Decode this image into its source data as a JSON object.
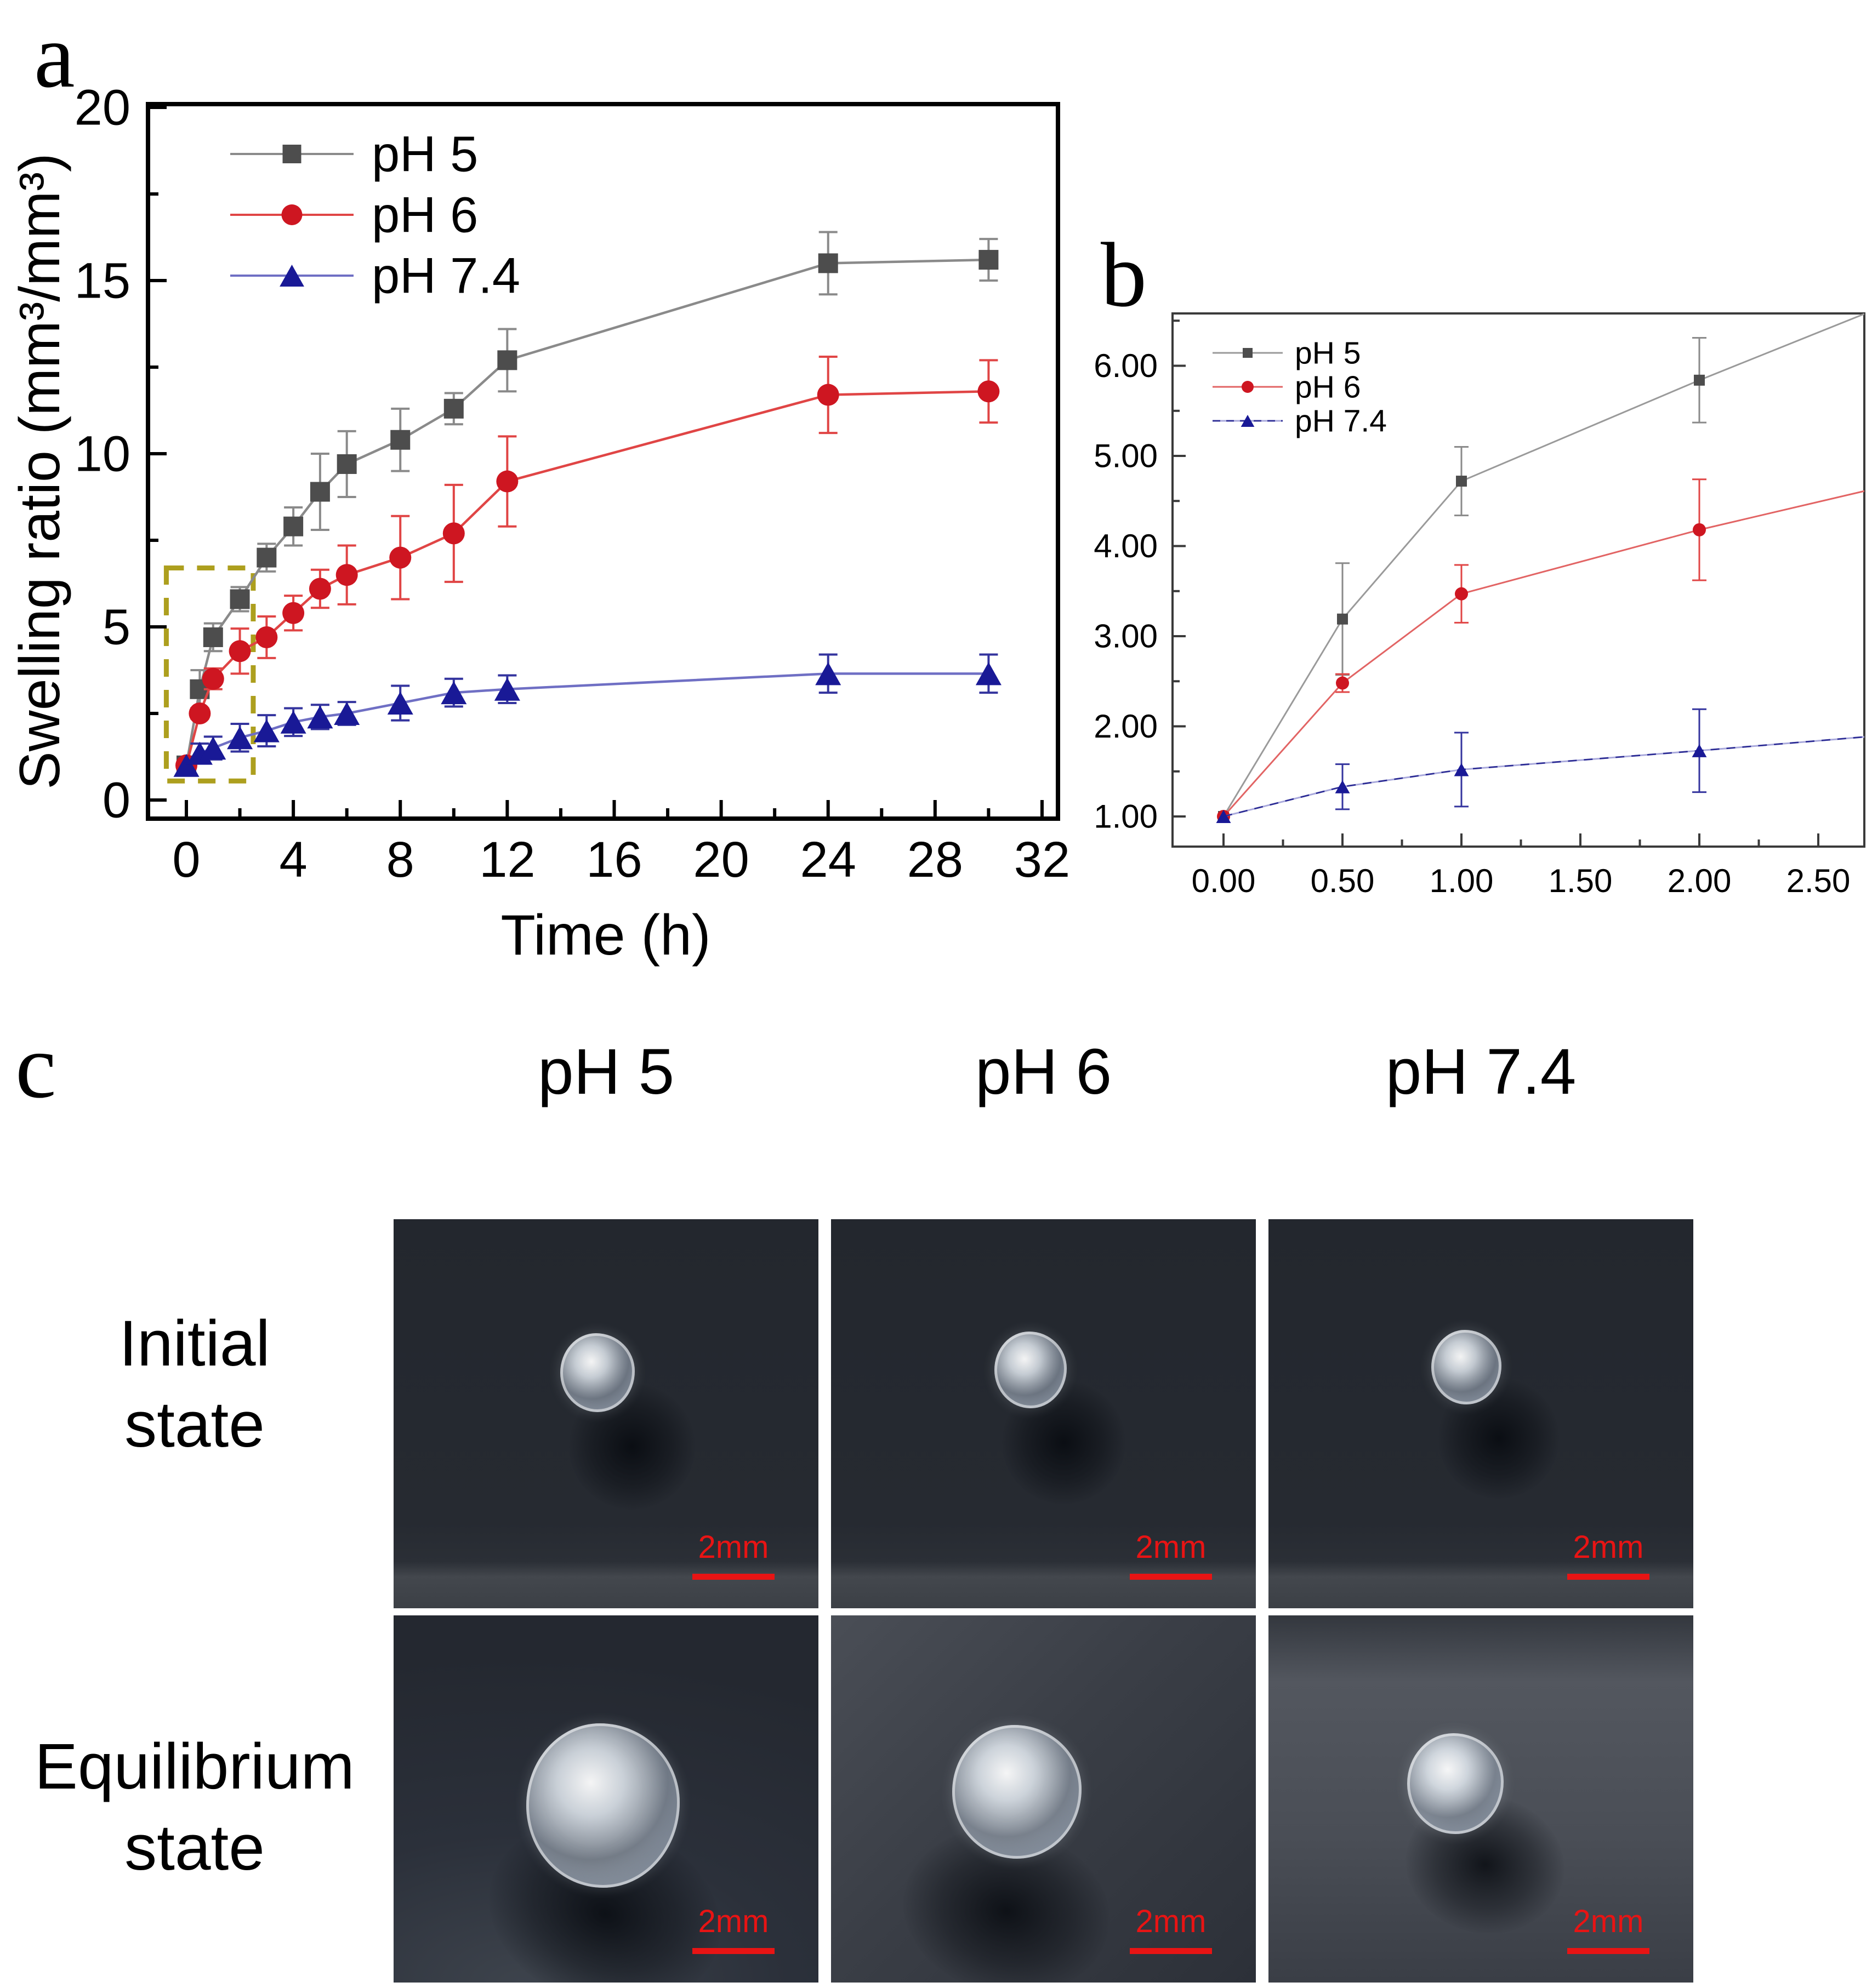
{
  "figure": {
    "panel_a_label": "a",
    "panel_b_label": "b",
    "panel_c_label": "c",
    "accent_colors": {
      "ph5_marker": "#4d4d4d",
      "ph5_line": "#8a8a8a",
      "ph6_marker": "#ce1621",
      "ph6_line": "#e04545",
      "ph74_marker": "#191996",
      "ph74_line": "#6f6fc4",
      "inset_box": "#ad9f1e",
      "scale_bar": "#e81414"
    }
  },
  "chart_data": [
    {
      "id": "panel_a",
      "type": "line",
      "title": "",
      "xlabel": "Time (h)",
      "ylabel": "Swelling ratio (mm³/mm³)",
      "xlim": [
        -1.4,
        32.6
      ],
      "ylim": [
        -0.55,
        20.1
      ],
      "grid": false,
      "legend_position": "top-left",
      "x_ticks": [
        0,
        4,
        8,
        12,
        16,
        20,
        24,
        28,
        32
      ],
      "x_tick_labels": [
        "0",
        "4",
        "8",
        "12",
        "16",
        "20",
        "24",
        "28",
        "32"
      ],
      "x_minor_ticks": [
        2,
        6,
        10,
        14,
        18,
        22,
        26,
        30
      ],
      "y_ticks": [
        0,
        5,
        10,
        15,
        20
      ],
      "y_tick_labels": [
        "0",
        "5",
        "10",
        "15",
        "20"
      ],
      "y_minor_ticks": [
        2.5,
        7.5,
        12.5,
        17.5
      ],
      "series": [
        {
          "name": "pH 5",
          "marker": "square",
          "line_style": "solid",
          "line_color": "#8a8a8a",
          "marker_color": "#4d4d4d",
          "err_color": "#8a8a8a",
          "x": [
            0,
            0.5,
            1,
            2,
            3,
            4,
            5,
            6,
            8,
            10,
            12,
            24,
            30
          ],
          "y": [
            1.0,
            3.2,
            4.7,
            5.8,
            7.0,
            7.9,
            8.9,
            9.7,
            10.4,
            11.3,
            12.7,
            15.5,
            15.6
          ],
          "yerr": [
            0,
            0.55,
            0.4,
            0.35,
            0.4,
            0.55,
            1.1,
            0.95,
            0.9,
            0.45,
            0.9,
            0.9,
            0.6
          ]
        },
        {
          "name": "pH 6",
          "marker": "circle",
          "line_style": "solid",
          "line_color": "#e04545",
          "marker_color": "#ce1621",
          "err_color": "#e04545",
          "x": [
            0,
            0.5,
            1,
            2,
            3,
            4,
            5,
            6,
            8,
            10,
            12,
            24,
            30
          ],
          "y": [
            1.0,
            2.5,
            3.5,
            4.3,
            4.7,
            5.4,
            6.1,
            6.5,
            7.0,
            7.7,
            9.2,
            11.7,
            11.8
          ],
          "yerr": [
            0,
            0.15,
            0.3,
            0.65,
            0.6,
            0.5,
            0.55,
            0.85,
            1.2,
            1.4,
            1.3,
            1.1,
            0.9
          ]
        },
        {
          "name": "pH 7.4",
          "marker": "triangle",
          "line_style": "solid",
          "line_color": "#6f6fc4",
          "marker_color": "#191996",
          "err_color": "#34349e",
          "x": [
            0,
            0.5,
            1,
            2,
            3,
            4,
            5,
            6,
            8,
            10,
            12,
            24,
            30
          ],
          "y": [
            1.0,
            1.35,
            1.5,
            1.8,
            2.0,
            2.25,
            2.4,
            2.5,
            2.8,
            3.1,
            3.2,
            3.65,
            3.65
          ],
          "yerr": [
            0,
            0.28,
            0.33,
            0.4,
            0.45,
            0.4,
            0.35,
            0.33,
            0.5,
            0.4,
            0.4,
            0.55,
            0.55
          ]
        }
      ],
      "inset_box": {
        "x0": -0.75,
        "x1": 2.5,
        "y0": 0.55,
        "y1": 6.7,
        "color": "#ad9f1e"
      }
    },
    {
      "id": "panel_b",
      "type": "line",
      "title": "",
      "xlabel": "",
      "ylabel": "",
      "xlim": [
        -0.21,
        2.69
      ],
      "ylim": [
        0.67,
        6.58
      ],
      "grid": false,
      "legend_position": "top-left",
      "x_ticks": [
        0.0,
        0.5,
        1.0,
        1.5,
        2.0,
        2.5
      ],
      "x_tick_labels": [
        "0.00",
        "0.50",
        "1.00",
        "1.50",
        "2.00",
        "2.50"
      ],
      "x_minor_ticks": [
        0.25,
        0.75,
        1.25,
        1.75,
        2.25,
        2.75
      ],
      "y_ticks": [
        1,
        2,
        3,
        4,
        5,
        6
      ],
      "y_tick_labels": [
        "1.00",
        "2.00",
        "3.00",
        "4.00",
        "5.00",
        "6.00"
      ],
      "y_minor_ticks": [
        1.5,
        2.5,
        3.5,
        4.5,
        5.5,
        6.5
      ],
      "series": [
        {
          "name": "pH 5",
          "marker": "square",
          "line_style": "solid",
          "n_markers": 4,
          "line_color": "#9a9a9a",
          "marker_color": "#4d4d4d",
          "err_color": "#8a8a8a",
          "x": [
            0,
            0.5,
            1,
            2,
            3
          ],
          "y": [
            1.0,
            3.19,
            4.72,
            5.84,
            6.9
          ],
          "yerr": [
            0,
            0.62,
            0.38,
            0.47,
            0
          ]
        },
        {
          "name": "pH 6",
          "marker": "circle",
          "line_style": "solid",
          "n_markers": 4,
          "line_color": "#e26464",
          "marker_color": "#ce1621",
          "err_color": "#e04545",
          "x": [
            0,
            0.5,
            1,
            2,
            3
          ],
          "y": [
            1.0,
            2.48,
            3.47,
            4.18,
            4.8
          ],
          "yerr": [
            0,
            0.1,
            0.32,
            0.56,
            0
          ]
        },
        {
          "name": "pH 7.4",
          "marker": "triangle",
          "line_style": "dash-dot",
          "n_markers": 4,
          "line_color": "#a9a9dc",
          "dash_color": "#2b2b94",
          "marker_color": "#191996",
          "err_color": "#34349e",
          "x": [
            0,
            0.5,
            1,
            2,
            3
          ],
          "y": [
            1.0,
            1.33,
            1.52,
            1.73,
            1.95
          ],
          "yerr": [
            0,
            0.25,
            0.41,
            0.46,
            0
          ]
        }
      ]
    }
  ],
  "panel_c": {
    "column_headers": [
      "pH 5",
      "pH 6",
      "pH 7.4"
    ],
    "row_labels": [
      [
        "Initial",
        "state"
      ],
      [
        "Equilibrium",
        "state"
      ]
    ],
    "scale_bar_label": "2mm",
    "photos": [
      {
        "id": "initial-ph5",
        "row": "Initial state",
        "column": "pH 5"
      },
      {
        "id": "initial-ph6",
        "row": "Initial state",
        "column": "pH 6"
      },
      {
        "id": "initial-ph74",
        "row": "Initial state",
        "column": "pH 7.4"
      },
      {
        "id": "equilibrium-ph5",
        "row": "Equilibrium state",
        "column": "pH 5"
      },
      {
        "id": "equilibrium-ph6",
        "row": "Equilibrium state",
        "column": "pH 6"
      },
      {
        "id": "equilibrium-ph74",
        "row": "Equilibrium state",
        "column": "pH 7.4"
      }
    ]
  }
}
